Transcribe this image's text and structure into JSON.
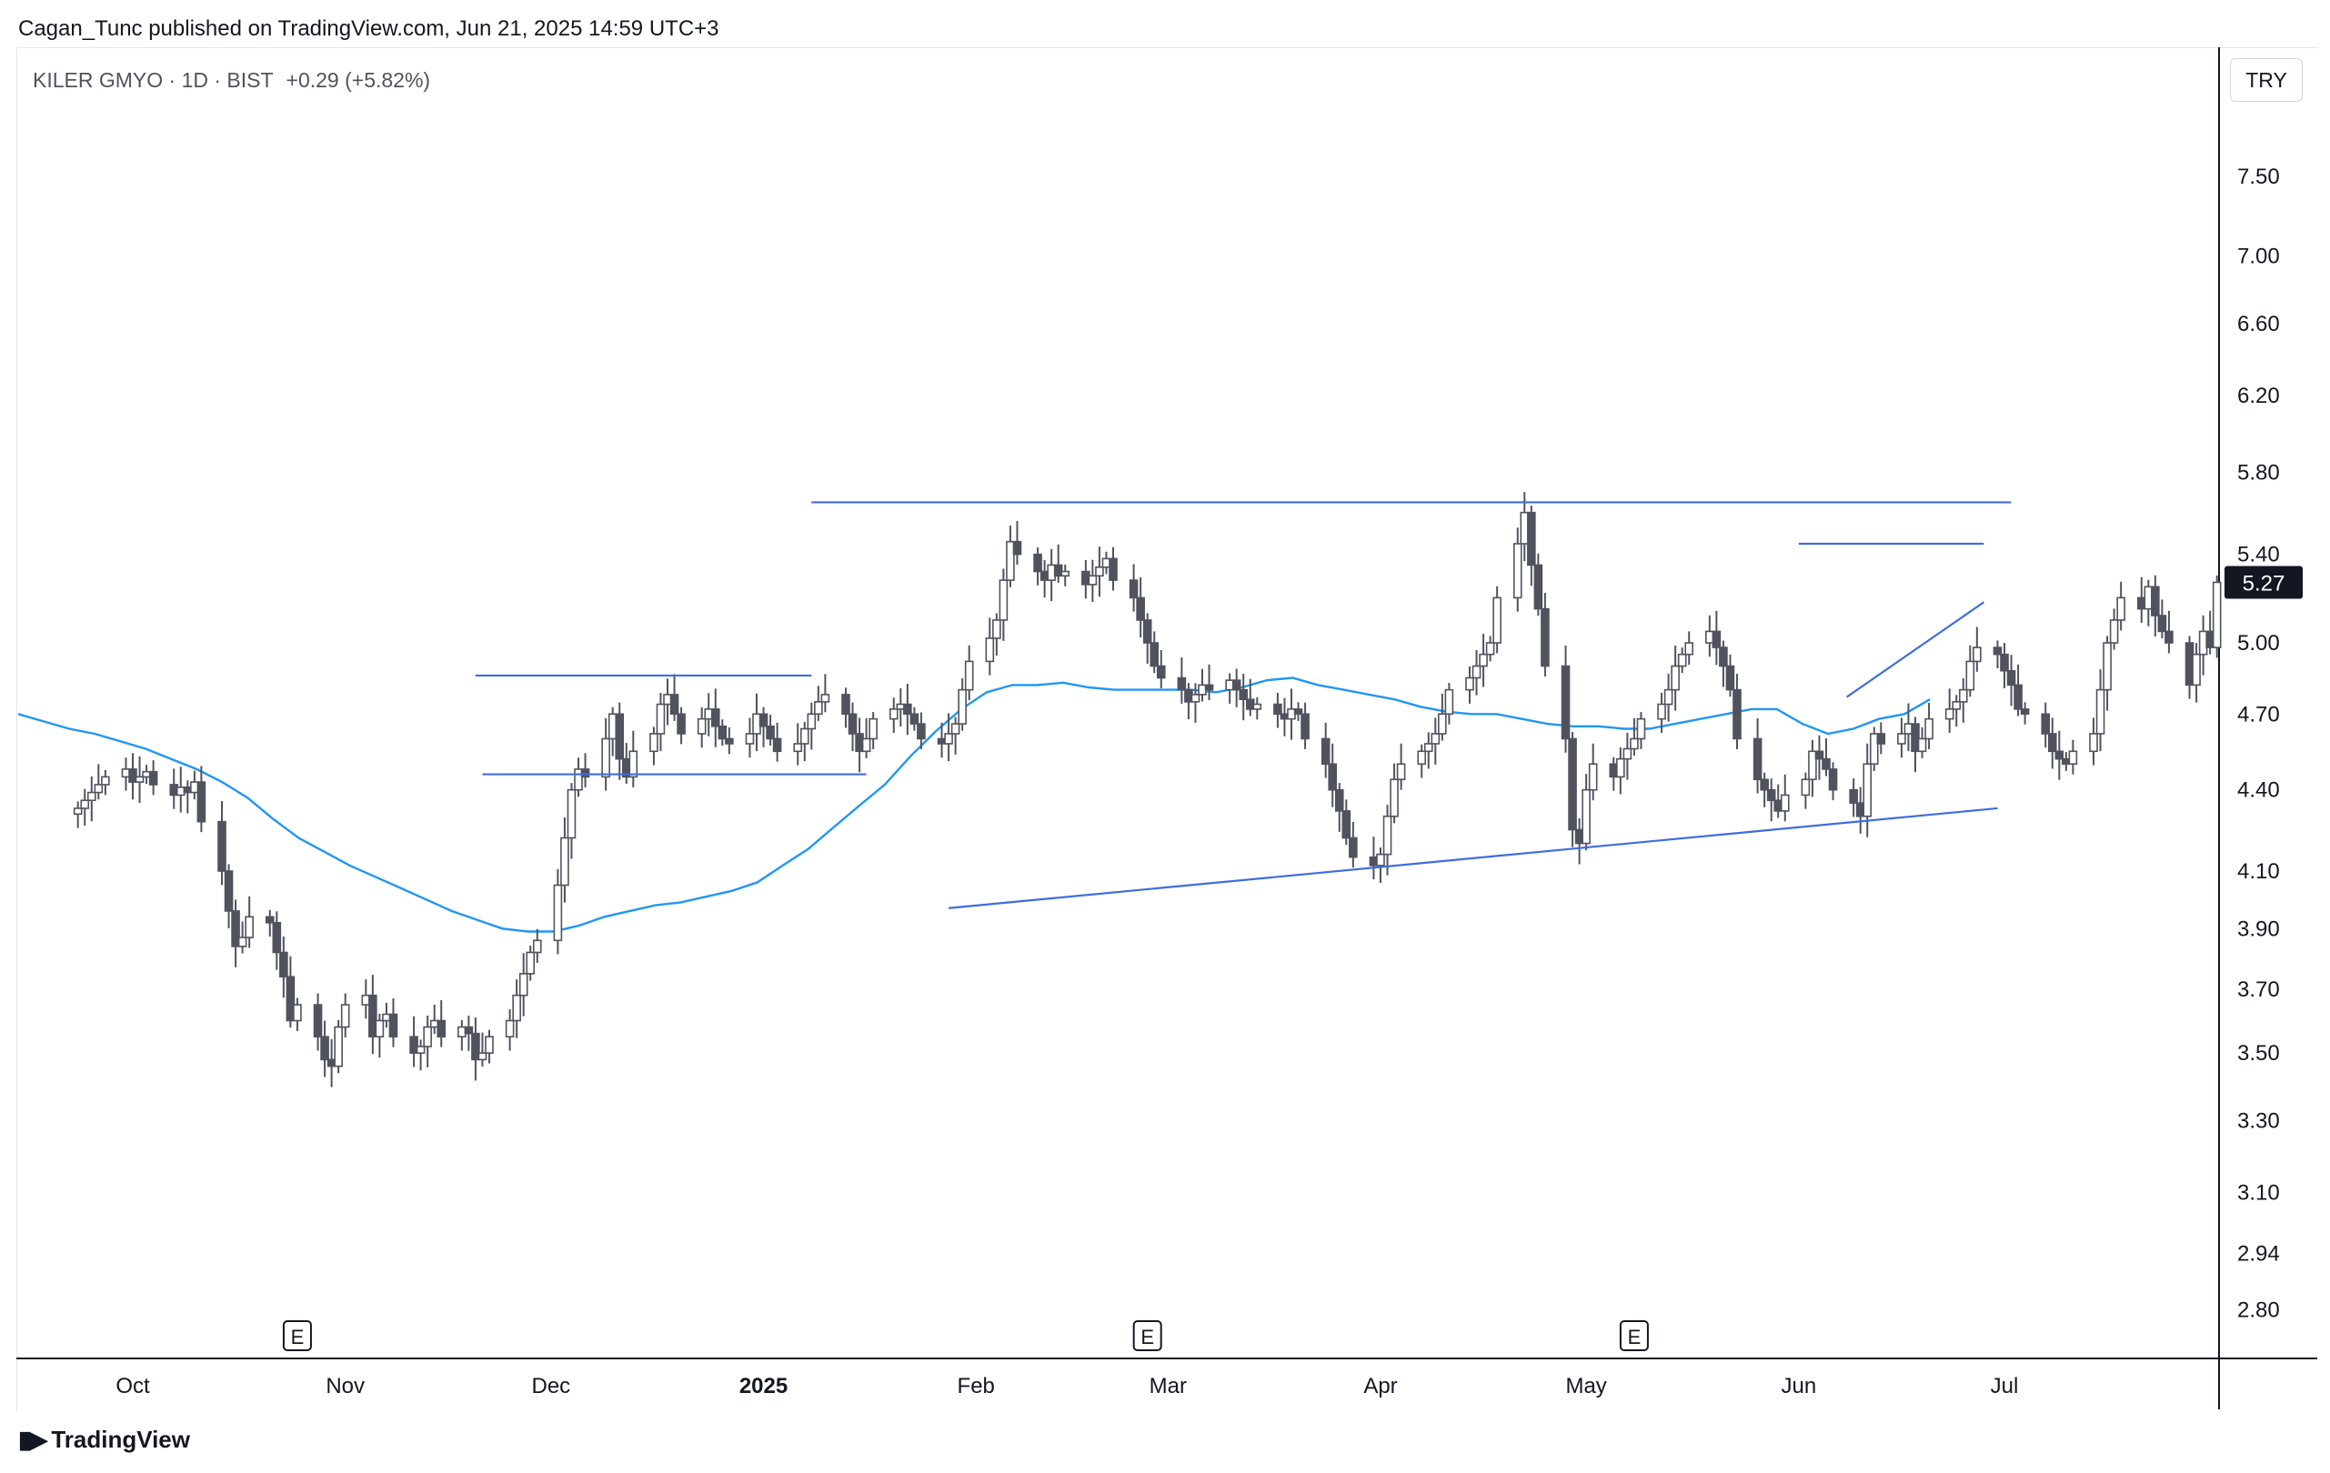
{
  "header": {
    "publisher_line": "Cagan_Tunc published on TradingView.com, Jun 21, 2025 14:59 UTC+3"
  },
  "legend": {
    "symbol": "KILER GMYO · 1D · BIST",
    "change": "+0.29 (+5.82%)"
  },
  "currency_button": "TRY",
  "brand": {
    "name": "TradingView",
    "icon": "tradingview-logo-icon"
  },
  "colors": {
    "candle": "#50535e",
    "ma": "#2196f3",
    "drawing": "#3d6de0",
    "price_tag": "#131722"
  },
  "chart_data": {
    "type": "candlestick",
    "title": "",
    "price_scale": "log",
    "ylim": [
      2.7,
      7.9
    ],
    "y_ticks": [
      "7.50",
      "7.00",
      "6.60",
      "6.20",
      "5.80",
      "5.40",
      "5.00",
      "4.70",
      "4.40",
      "4.10",
      "3.90",
      "3.70",
      "3.50",
      "3.30",
      "3.10",
      "2.94",
      "2.80"
    ],
    "x_labels": [
      {
        "label": "Oct",
        "date": "2024-10-01"
      },
      {
        "label": "Nov",
        "date": "2024-11-01"
      },
      {
        "label": "Dec",
        "date": "2024-12-01"
      },
      {
        "label": "2025",
        "date": "2025-01-01",
        "bold": true
      },
      {
        "label": "Feb",
        "date": "2025-02-01"
      },
      {
        "label": "Mar",
        "date": "2025-03-01"
      },
      {
        "label": "Apr",
        "date": "2025-04-01"
      },
      {
        "label": "May",
        "date": "2025-05-01"
      },
      {
        "label": "Jun",
        "date": "2025-06-01"
      },
      {
        "label": "Jul",
        "date": "2025-07-01"
      }
    ],
    "last_price": "5.27",
    "earnings_markers": [
      {
        "label": "E",
        "date": "2024-10-25"
      },
      {
        "label": "E",
        "date": "2025-02-26"
      },
      {
        "label": "E",
        "date": "2025-05-08"
      }
    ],
    "series_close": [
      4.33,
      4.36,
      4.39,
      4.42,
      4.45,
      4.48,
      4.43,
      4.45,
      4.47,
      4.42,
      4.38,
      4.41,
      4.39,
      4.43,
      4.28,
      4.1,
      3.96,
      3.84,
      3.87,
      3.94,
      3.92,
      3.82,
      3.74,
      3.6,
      3.65,
      3.55,
      3.48,
      3.46,
      3.58,
      3.65,
      3.68,
      3.55,
      3.6,
      3.62,
      3.55,
      3.5,
      3.52,
      3.58,
      3.6,
      3.55,
      3.58,
      3.56,
      3.48,
      3.5,
      3.55,
      3.6,
      3.68,
      3.75,
      3.82,
      3.86,
      4.05,
      4.22,
      4.4,
      4.48,
      4.45,
      4.6,
      4.7,
      4.52,
      4.45,
      4.55,
      4.62,
      4.74,
      4.78,
      4.7,
      4.62,
      4.68,
      4.72,
      4.65,
      4.6,
      4.58,
      4.62,
      4.7,
      4.65,
      4.6,
      4.55,
      4.58,
      4.64,
      4.7,
      4.75,
      4.78,
      4.7,
      4.62,
      4.55,
      4.6,
      4.68,
      4.72,
      4.74,
      4.7,
      4.66,
      4.6,
      4.58,
      4.62,
      4.66,
      4.8,
      4.92,
      5.02,
      5.1,
      5.28,
      5.46,
      5.4,
      5.32,
      5.28,
      5.35,
      5.3,
      5.32,
      5.26,
      5.3,
      5.34,
      5.38,
      5.28,
      5.2,
      5.1,
      5.0,
      4.9,
      4.85,
      4.8,
      4.75,
      4.78,
      4.82,
      4.8,
      4.84,
      4.8,
      4.76,
      4.72,
      4.74,
      4.7,
      4.68,
      4.72,
      4.7,
      4.6,
      4.5,
      4.4,
      4.32,
      4.22,
      4.15,
      4.12,
      4.16,
      4.3,
      4.44,
      4.5,
      4.55,
      4.58,
      4.62,
      4.7,
      4.8,
      4.85,
      4.9,
      4.95,
      5.0,
      5.2,
      5.45,
      5.6,
      5.35,
      5.15,
      4.9,
      4.6,
      4.25,
      4.2,
      4.4,
      4.5,
      4.45,
      4.52,
      4.56,
      4.6,
      4.68,
      4.74,
      4.8,
      4.9,
      4.95,
      5.0,
      5.05,
      4.98,
      4.9,
      4.8,
      4.6,
      4.44,
      4.4,
      4.36,
      4.32,
      4.38,
      4.44,
      4.55,
      4.52,
      4.48,
      4.4,
      4.35,
      4.3,
      4.5,
      4.62,
      4.58,
      4.62,
      4.66,
      4.55,
      4.6,
      4.68,
      4.72,
      4.75,
      4.8,
      4.92,
      4.98,
      4.95,
      4.88,
      4.82,
      4.72,
      4.7,
      4.62,
      4.55,
      4.52,
      4.5,
      4.55,
      4.62,
      4.8,
      5.0,
      5.1,
      5.2,
      5.15,
      5.25,
      5.12,
      5.05,
      5.0,
      4.82,
      4.95,
      5.05,
      4.98,
      5.27
    ],
    "ma_series": [
      4.7,
      4.67,
      4.64,
      4.62,
      4.59,
      4.56,
      4.52,
      4.48,
      4.43,
      4.37,
      4.29,
      4.22,
      4.17,
      4.12,
      4.08,
      4.04,
      4.0,
      3.96,
      3.93,
      3.9,
      3.89,
      3.89,
      3.91,
      3.94,
      3.96,
      3.98,
      3.99,
      4.01,
      4.03,
      4.06,
      4.12,
      4.18,
      4.26,
      4.34,
      4.42,
      4.53,
      4.63,
      4.72,
      4.79,
      4.82,
      4.82,
      4.83,
      4.81,
      4.8,
      4.8,
      4.8,
      4.8,
      4.79,
      4.81,
      4.84,
      4.85,
      4.82,
      4.8,
      4.78,
      4.76,
      4.73,
      4.71,
      4.7,
      4.7,
      4.68,
      4.66,
      4.65,
      4.65,
      4.64,
      4.64,
      4.66,
      4.68,
      4.7,
      4.72,
      4.72,
      4.66,
      4.62,
      4.64,
      4.68,
      4.7,
      4.76
    ],
    "drawings": [
      {
        "type": "horizontal",
        "price": 5.65,
        "from": "2025-01-08",
        "to": "2025-07-02"
      },
      {
        "type": "horizontal",
        "price": 4.86,
        "from": "2024-11-20",
        "to": "2025-01-08"
      },
      {
        "type": "horizontal",
        "price": 4.46,
        "from": "2024-11-21",
        "to": "2025-01-16"
      },
      {
        "type": "horizontal",
        "price": 5.45,
        "from": "2025-06-01",
        "to": "2025-06-28"
      },
      {
        "type": "trendline",
        "p1": {
          "date": "2025-01-28",
          "price": 3.97
        },
        "p2": {
          "date": "2025-06-30",
          "price": 4.33
        }
      },
      {
        "type": "trendline",
        "p1": {
          "date": "2025-06-08",
          "price": 4.77
        },
        "p2": {
          "date": "2025-06-28",
          "price": 5.18
        }
      }
    ]
  }
}
